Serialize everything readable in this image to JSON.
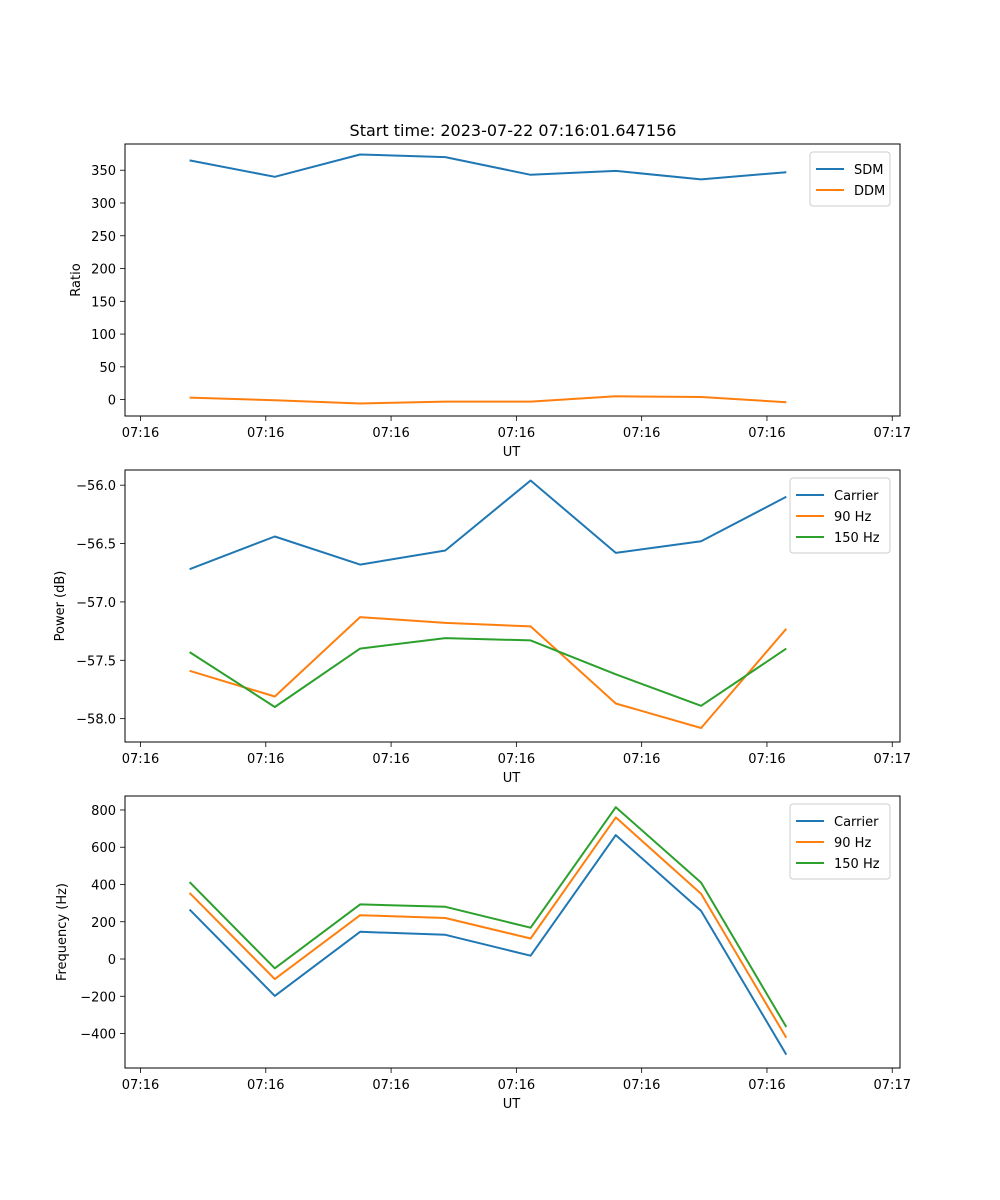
{
  "chart_data": [
    {
      "type": "line",
      "title": "Start time: 2023-07-22 07:16:01.647156",
      "xlabel": "UT",
      "ylabel": "Ratio",
      "xticks": [
        "07:16",
        "07:16",
        "07:16",
        "07:16",
        "07:16",
        "07:16",
        "07:17"
      ],
      "xlim": [
        0,
        6
      ],
      "x": [
        0.5,
        1.16,
        1.82,
        2.48,
        3.14,
        3.8,
        4.46,
        5.12
      ],
      "ylim": [
        -25,
        390
      ],
      "yticks": [
        0,
        50,
        100,
        150,
        200,
        250,
        300,
        350
      ],
      "legend_position": "top-right",
      "series": [
        {
          "name": "SDM",
          "color": "#1f77b4",
          "values": [
            365,
            340,
            374,
            370,
            343,
            349,
            336,
            347
          ]
        },
        {
          "name": "DDM",
          "color": "#ff7f0e",
          "values": [
            3,
            -1,
            -6,
            -3,
            -3,
            5,
            4,
            -4
          ]
        }
      ]
    },
    {
      "type": "line",
      "title": "",
      "xlabel": "UT",
      "ylabel": "Power (dB)",
      "xticks": [
        "07:16",
        "07:16",
        "07:16",
        "07:16",
        "07:16",
        "07:16",
        "07:17"
      ],
      "xlim": [
        0,
        6
      ],
      "x": [
        0.5,
        1.16,
        1.82,
        2.48,
        3.14,
        3.8,
        4.46,
        5.12
      ],
      "ylim": [
        -58.2,
        -55.87
      ],
      "yticks": [
        -58.0,
        -57.5,
        -57.0,
        -56.5,
        -56.0
      ],
      "ytick_labels": [
        "−58.0",
        "−57.5",
        "−57.0",
        "−56.5",
        "−56.0"
      ],
      "legend_position": "top-right",
      "series": [
        {
          "name": "Carrier",
          "color": "#1f77b4",
          "values": [
            -56.72,
            -56.44,
            -56.68,
            -56.56,
            -55.96,
            -56.58,
            -56.48,
            -56.1
          ]
        },
        {
          "name": "90 Hz",
          "color": "#ff7f0e",
          "values": [
            -57.59,
            -57.81,
            -57.13,
            -57.18,
            -57.21,
            -57.87,
            -58.08,
            -57.23
          ]
        },
        {
          "name": "150 Hz",
          "color": "#2ca02c",
          "values": [
            -57.43,
            -57.9,
            -57.4,
            -57.31,
            -57.33,
            -57.62,
            -57.89,
            -57.4
          ]
        }
      ]
    },
    {
      "type": "line",
      "title": "",
      "xlabel": "UT",
      "ylabel": "Frequency (Hz)",
      "xticks": [
        "07:16",
        "07:16",
        "07:16",
        "07:16",
        "07:16",
        "07:16",
        "07:17"
      ],
      "xlim": [
        0,
        6
      ],
      "x": [
        0.5,
        1.16,
        1.82,
        2.48,
        3.14,
        3.8,
        4.46,
        5.12
      ],
      "ylim": [
        -585,
        875
      ],
      "yticks": [
        -400,
        -200,
        0,
        200,
        400,
        600,
        800
      ],
      "ytick_labels": [
        "−400",
        "−200",
        "0",
        "200",
        "400",
        "600",
        "800"
      ],
      "legend_position": "top-right",
      "series": [
        {
          "name": "Carrier",
          "color": "#1f77b4",
          "values": [
            265,
            -198,
            146,
            130,
            18,
            665,
            258,
            -513
          ]
        },
        {
          "name": "90 Hz",
          "color": "#ff7f0e",
          "values": [
            355,
            -108,
            235,
            220,
            110,
            760,
            350,
            -423
          ]
        },
        {
          "name": "150 Hz",
          "color": "#2ca02c",
          "values": [
            413,
            -50,
            293,
            280,
            168,
            815,
            410,
            -365
          ]
        }
      ]
    }
  ]
}
